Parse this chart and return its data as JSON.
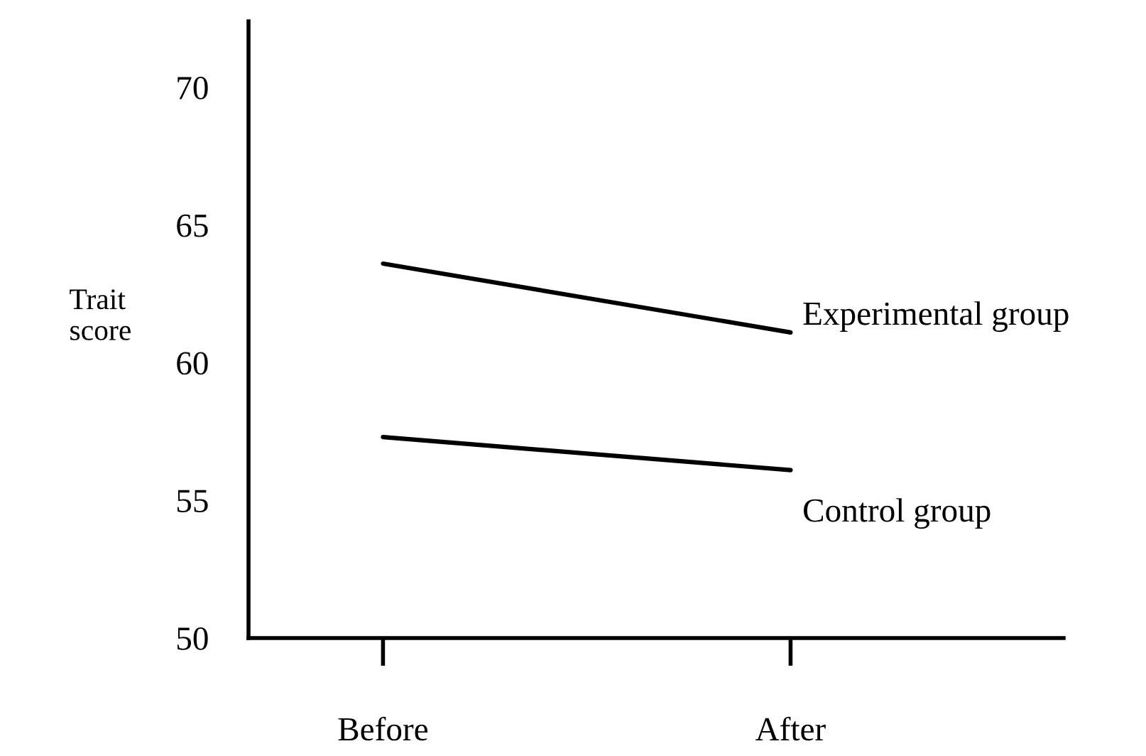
{
  "chart_data": {
    "type": "line",
    "ylabel": "Trait\nscore",
    "categories": [
      "Before",
      "After"
    ],
    "series": [
      {
        "name": "Experimental group",
        "color": "#000000",
        "values": [
          63.6,
          61.1
        ]
      },
      {
        "name": "Control group",
        "color": "#000000",
        "values": [
          57.3,
          56.1
        ]
      }
    ],
    "ylim": [
      50,
      72.4
    ],
    "yticks": [
      50,
      55,
      60,
      65,
      70
    ],
    "grid": false,
    "legend": false,
    "marker": "none",
    "line_style": "solid"
  }
}
